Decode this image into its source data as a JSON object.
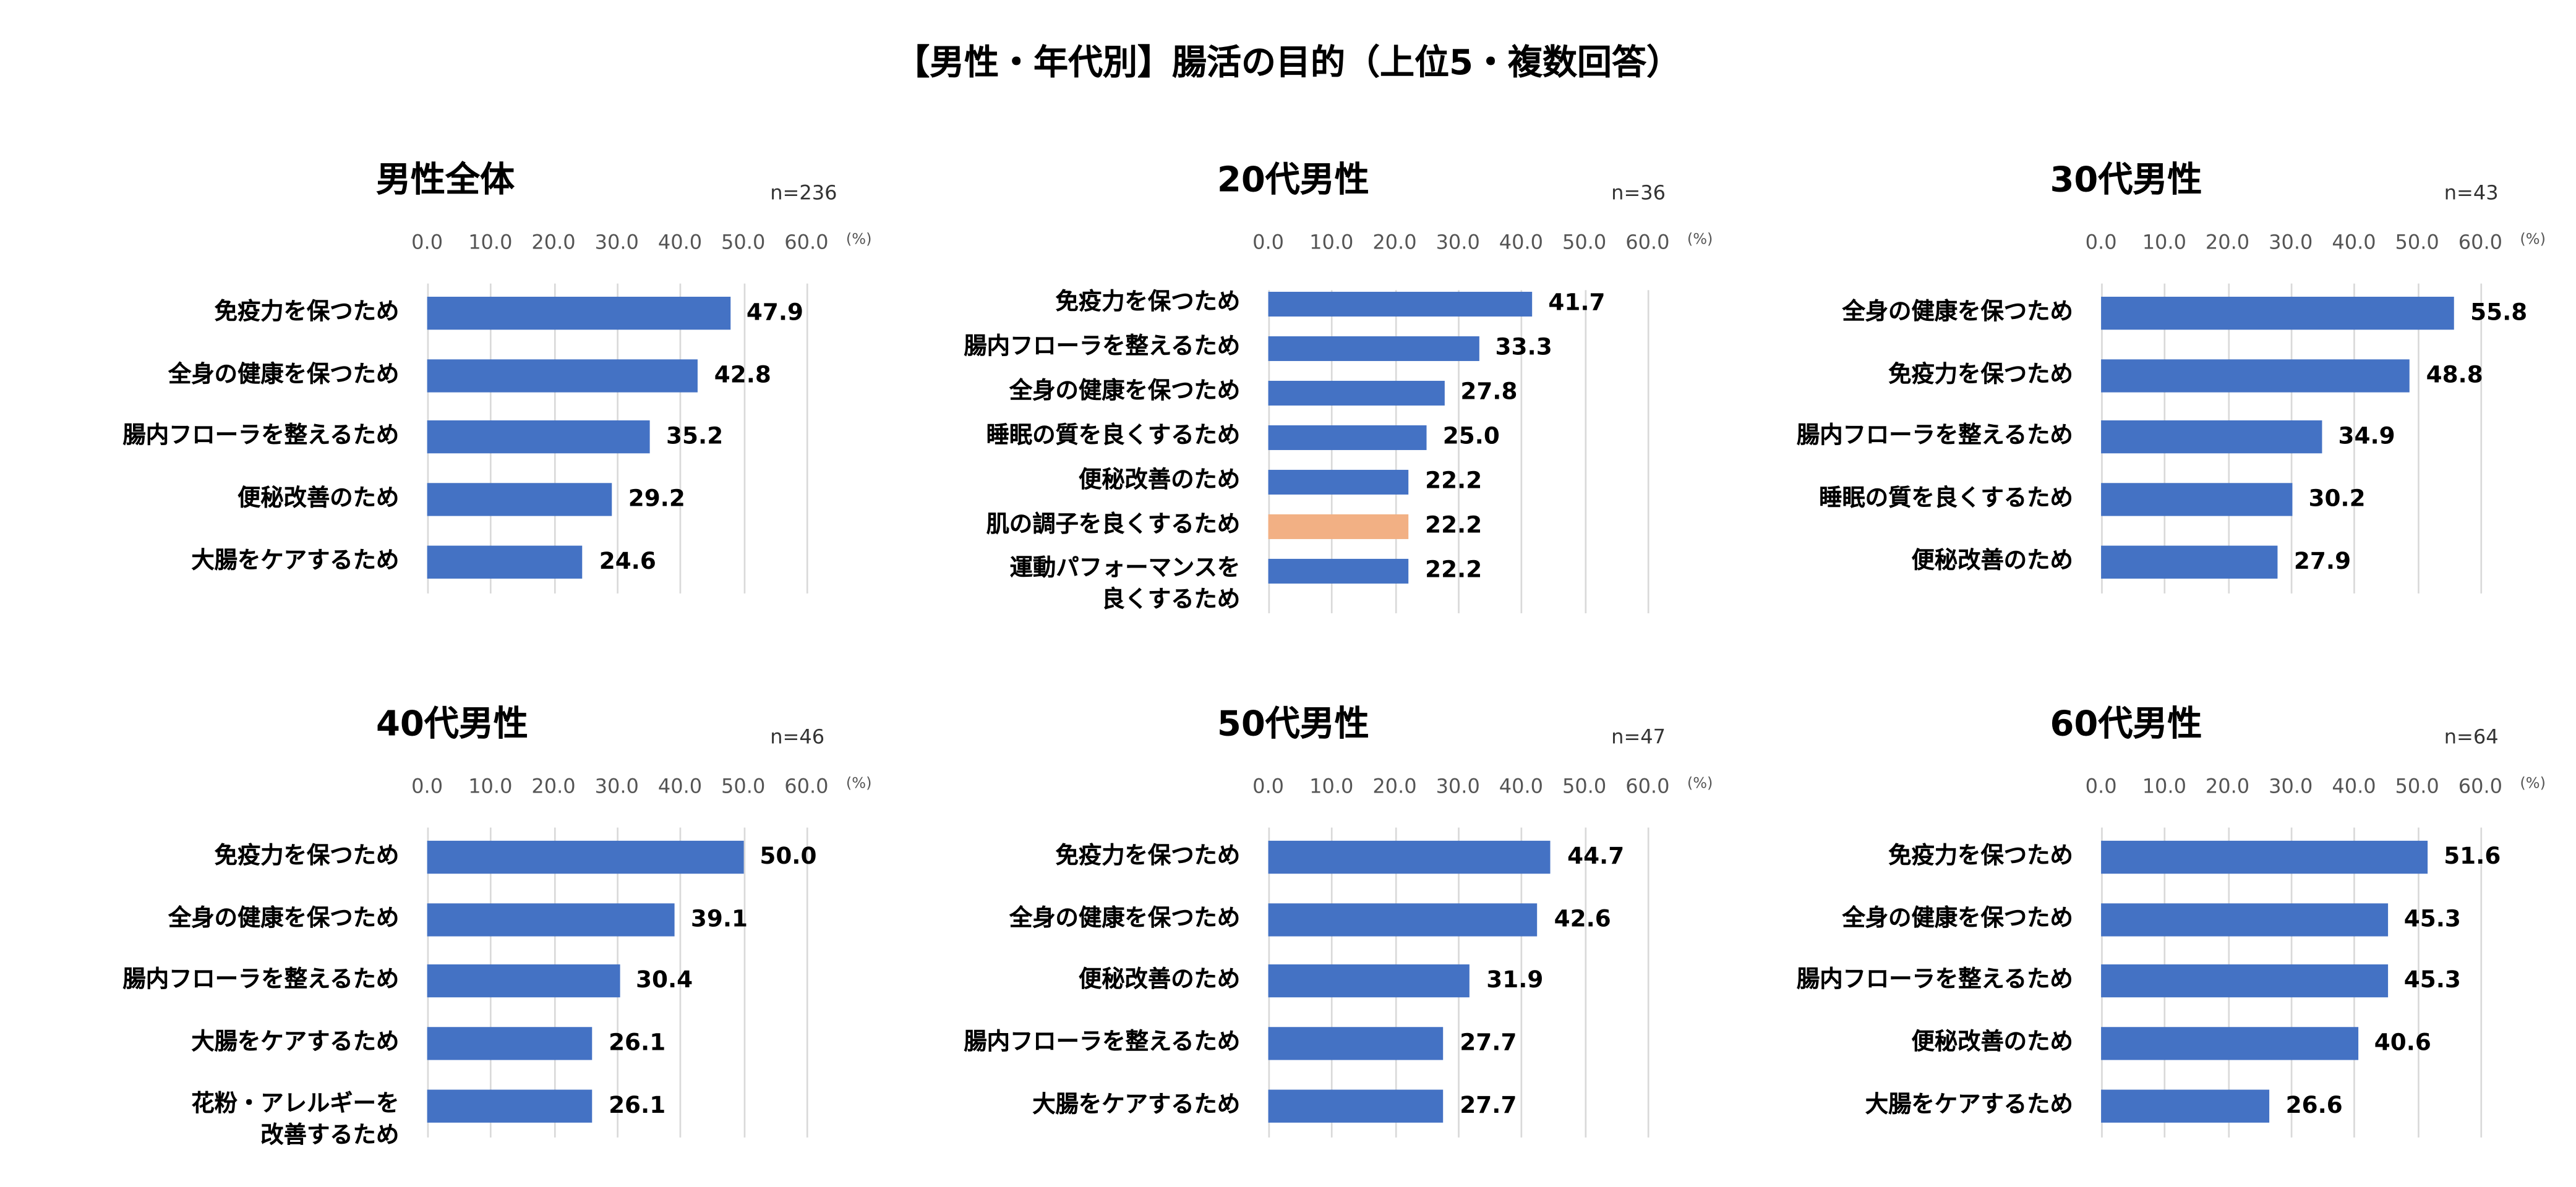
{
  "title": "【男性・年代別】腸活の目的（上位5・複数回答）",
  "colors": {
    "bar": "#4472c4",
    "highlight": "#f2b084",
    "grid": "#d9d9d9"
  },
  "chart_data": [
    {
      "type": "bar",
      "orientation": "horizontal",
      "title": "男性全体",
      "n_label": "n=236",
      "unit": "(%)",
      "xlim": [
        0,
        60
      ],
      "ticks": [
        "0.0",
        "10.0",
        "20.0",
        "30.0",
        "40.0",
        "50.0",
        "60.0"
      ],
      "categories": [
        "免疫力を保つため",
        "全身の健康を保つため",
        "腸内フローラを整えるため",
        "便秘改善のため",
        "大腸をケアするため"
      ],
      "values": [
        47.9,
        42.8,
        35.2,
        29.2,
        24.6
      ],
      "value_labels": [
        "47.9",
        "42.8",
        "35.2",
        "29.2",
        "24.6"
      ],
      "highlight": []
    },
    {
      "type": "bar",
      "orientation": "horizontal",
      "title": "20代男性",
      "n_label": "n=36",
      "unit": "(%)",
      "xlim": [
        0,
        60
      ],
      "ticks": [
        "0.0",
        "10.0",
        "20.0",
        "30.0",
        "40.0",
        "50.0",
        "60.0"
      ],
      "categories": [
        "免疫力を保つため",
        "腸内フローラを整えるため",
        "全身の健康を保つため",
        "睡眠の質を良くするため",
        "便秘改善のため",
        "肌の調子を良くするため",
        "運動パフォーマンスを\n良くするため"
      ],
      "values": [
        41.7,
        33.3,
        27.8,
        25.0,
        22.2,
        22.2,
        22.2
      ],
      "value_labels": [
        "41.7",
        "33.3",
        "27.8",
        "25.0",
        "22.2",
        "22.2",
        "22.2"
      ],
      "highlight": [
        5
      ]
    },
    {
      "type": "bar",
      "orientation": "horizontal",
      "title": "30代男性",
      "n_label": "n=43",
      "unit": "(%)",
      "xlim": [
        0,
        60
      ],
      "ticks": [
        "0.0",
        "10.0",
        "20.0",
        "30.0",
        "40.0",
        "50.0",
        "60.0"
      ],
      "categories": [
        "全身の健康を保つため",
        "免疫力を保つため",
        "腸内フローラを整えるため",
        "睡眠の質を良くするため",
        "便秘改善のため"
      ],
      "values": [
        55.8,
        48.8,
        34.9,
        30.2,
        27.9
      ],
      "value_labels": [
        "55.8",
        "48.8",
        "34.9",
        "30.2",
        "27.9"
      ],
      "highlight": []
    },
    {
      "type": "bar",
      "orientation": "horizontal",
      "title": "40代男性",
      "n_label": "n=46",
      "unit": "(%)",
      "xlim": [
        0,
        60
      ],
      "ticks": [
        "0.0",
        "10.0",
        "20.0",
        "30.0",
        "40.0",
        "50.0",
        "60.0"
      ],
      "categories": [
        "免疫力を保つため",
        "全身の健康を保つため",
        "腸内フローラを整えるため",
        "大腸をケアするため",
        "花粉・アレルギーを\n改善するため"
      ],
      "values": [
        50.0,
        39.1,
        30.4,
        26.1,
        26.1
      ],
      "value_labels": [
        "50.0",
        "39.1",
        "30.4",
        "26.1",
        "26.1"
      ],
      "highlight": []
    },
    {
      "type": "bar",
      "orientation": "horizontal",
      "title": "50代男性",
      "n_label": "n=47",
      "unit": "(%)",
      "xlim": [
        0,
        60
      ],
      "ticks": [
        "0.0",
        "10.0",
        "20.0",
        "30.0",
        "40.0",
        "50.0",
        "60.0"
      ],
      "categories": [
        "免疫力を保つため",
        "全身の健康を保つため",
        "便秘改善のため",
        "腸内フローラを整えるため",
        "大腸をケアするため"
      ],
      "values": [
        44.7,
        42.6,
        31.9,
        27.7,
        27.7
      ],
      "value_labels": [
        "44.7",
        "42.6",
        "31.9",
        "27.7",
        "27.7"
      ],
      "highlight": []
    },
    {
      "type": "bar",
      "orientation": "horizontal",
      "title": "60代男性",
      "n_label": "n=64",
      "unit": "(%)",
      "xlim": [
        0,
        60
      ],
      "ticks": [
        "0.0",
        "10.0",
        "20.0",
        "30.0",
        "40.0",
        "50.0",
        "60.0"
      ],
      "categories": [
        "免疫力を保つため",
        "全身の健康を保つため",
        "腸内フローラを整えるため",
        "便秘改善のため",
        "大腸をケアするため"
      ],
      "values": [
        51.6,
        45.3,
        45.3,
        40.6,
        26.6
      ],
      "value_labels": [
        "51.6",
        "45.3",
        "45.3",
        "40.6",
        "26.6"
      ],
      "highlight": []
    }
  ]
}
